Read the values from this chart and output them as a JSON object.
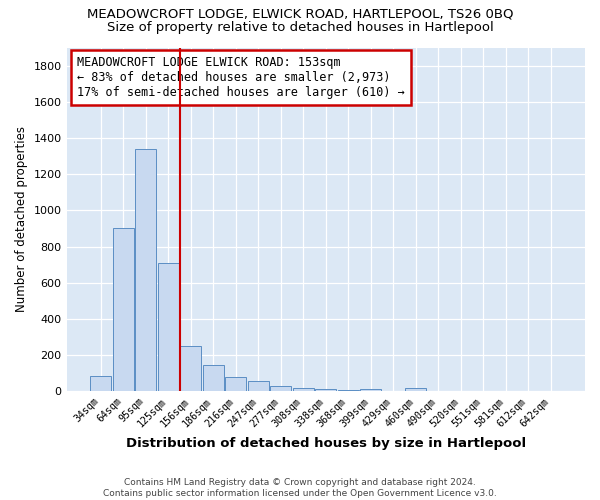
{
  "title": "MEADOWCROFT LODGE, ELWICK ROAD, HARTLEPOOL, TS26 0BQ",
  "subtitle": "Size of property relative to detached houses in Hartlepool",
  "xlabel": "Distribution of detached houses by size in Hartlepool",
  "ylabel": "Number of detached properties",
  "categories": [
    "34sqm",
    "64sqm",
    "95sqm",
    "125sqm",
    "156sqm",
    "186sqm",
    "216sqm",
    "247sqm",
    "277sqm",
    "308sqm",
    "338sqm",
    "368sqm",
    "399sqm",
    "429sqm",
    "460sqm",
    "490sqm",
    "520sqm",
    "551sqm",
    "581sqm",
    "612sqm",
    "642sqm"
  ],
  "values": [
    85,
    905,
    1340,
    710,
    250,
    145,
    80,
    55,
    30,
    20,
    13,
    8,
    13,
    0,
    20,
    0,
    0,
    0,
    0,
    0,
    0
  ],
  "bar_color": "#c8d9f0",
  "bar_edge_color": "#5b8ec4",
  "vline_color": "#cc0000",
  "annotation_text": "MEADOWCROFT LODGE ELWICK ROAD: 153sqm\n← 83% of detached houses are smaller (2,973)\n17% of semi-detached houses are larger (610) →",
  "annotation_box_color": "#ffffff",
  "annotation_box_edge": "#cc0000",
  "footer": "Contains HM Land Registry data © Crown copyright and database right 2024.\nContains public sector information licensed under the Open Government Licence v3.0.",
  "bg_color": "#ffffff",
  "plot_bg_color": "#dce8f5",
  "title_fontsize": 9.5,
  "subtitle_fontsize": 9.5,
  "ylim": [
    0,
    1900
  ],
  "yticks": [
    0,
    200,
    400,
    600,
    800,
    1000,
    1200,
    1400,
    1600,
    1800
  ]
}
